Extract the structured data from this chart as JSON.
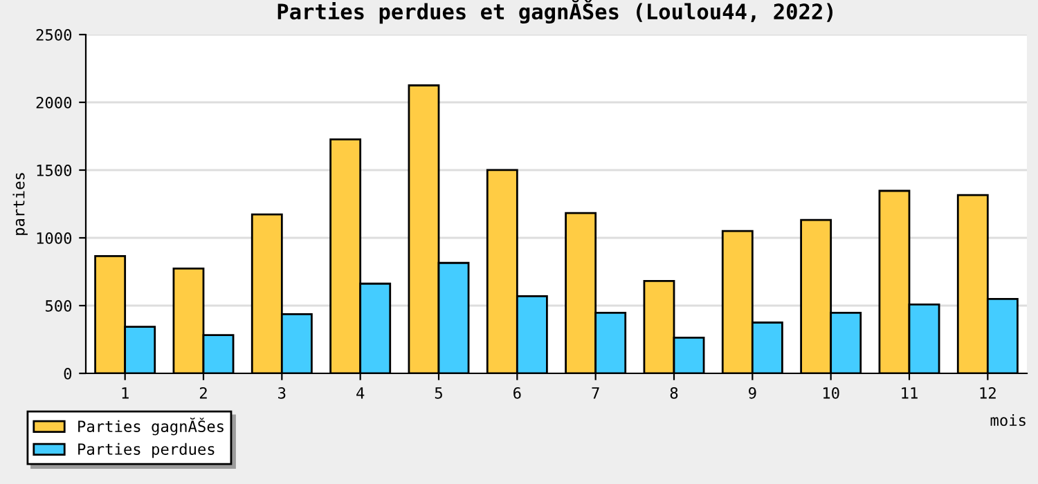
{
  "chart_data": {
    "type": "bar",
    "title": "Parties perdues et gagnĂŠes (Loulou44, 2022)",
    "xlabel": "mois",
    "ylabel": "parties",
    "categories": [
      "1",
      "2",
      "3",
      "4",
      "5",
      "6",
      "7",
      "8",
      "9",
      "10",
      "11",
      "12"
    ],
    "series": [
      {
        "name": "Parties gagnĂŠes",
        "color": "#ffcc44",
        "values": [
          866,
          774,
          1173,
          1726,
          2125,
          1501,
          1183,
          682,
          1050,
          1132,
          1347,
          1316
        ]
      },
      {
        "name": "Parties perdues",
        "color": "#44ccff",
        "values": [
          344,
          283,
          437,
          662,
          815,
          570,
          447,
          263,
          375,
          447,
          508,
          549
        ]
      }
    ],
    "ylim": [
      0,
      2500
    ],
    "yticks": [
      0,
      500,
      1000,
      1500,
      2000,
      2500
    ],
    "grid": "y",
    "legend": "bottom left"
  }
}
